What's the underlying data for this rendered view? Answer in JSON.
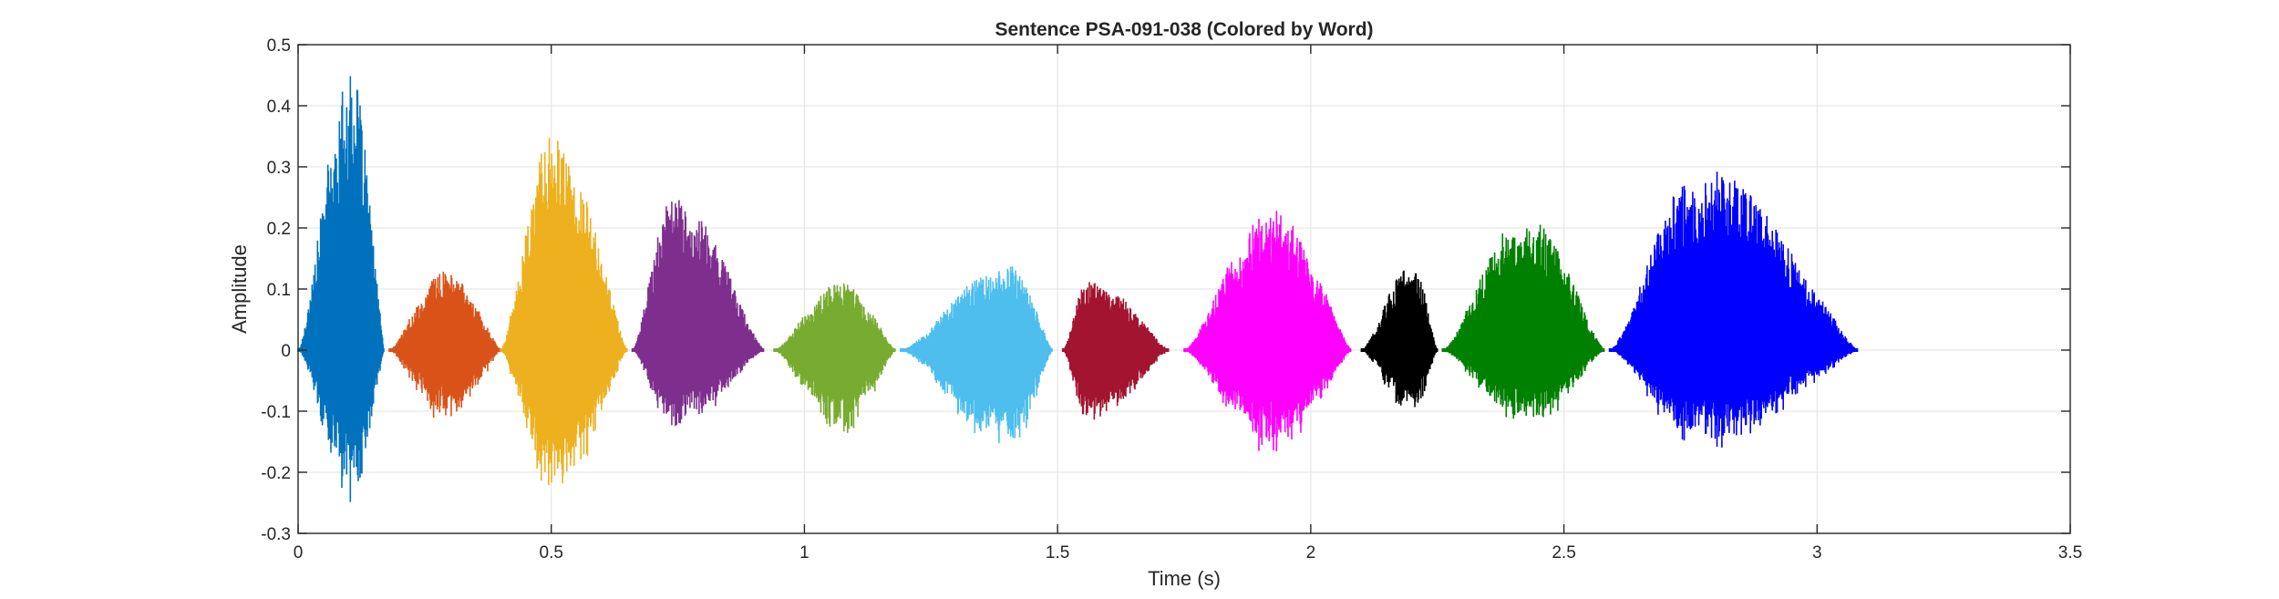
{
  "chart_data": {
    "type": "line",
    "title": "Sentence PSA-091-038 (Colored by Word)",
    "xlabel": "Time (s)",
    "ylabel": "Amplitude",
    "xlim": [
      0,
      3.5
    ],
    "ylim": [
      -0.3,
      0.5
    ],
    "xticks": [
      0,
      0.5,
      1,
      1.5,
      2,
      2.5,
      3,
      3.5
    ],
    "xtick_labels": [
      "0",
      "0.5",
      "1",
      "1.5",
      "2",
      "2.5",
      "3",
      "3.5"
    ],
    "yticks": [
      -0.3,
      -0.2,
      -0.1,
      0,
      0.1,
      0.2,
      0.3,
      0.4,
      0.5
    ],
    "ytick_labels": [
      "-0.3",
      "-0.2",
      "-0.1",
      "0",
      "0.1",
      "0.2",
      "0.3",
      "0.4",
      "0.5"
    ],
    "grid": true,
    "series": [
      {
        "color": "#0072BD",
        "start": 0.0,
        "end": 0.17,
        "peak_time": 0.105,
        "max": 0.45,
        "min": -0.26
      },
      {
        "color": "#D95319",
        "start": 0.18,
        "end": 0.4,
        "peak_time": 0.29,
        "max": 0.13,
        "min": -0.125
      },
      {
        "color": "#EDB120",
        "start": 0.4,
        "end": 0.65,
        "peak_time": 0.5,
        "max": 0.35,
        "min": -0.26
      },
      {
        "color": "#7E2F8E",
        "start": 0.66,
        "end": 0.92,
        "peak_time": 0.74,
        "max": 0.25,
        "min": -0.135
      },
      {
        "color": "#77AC30",
        "start": 0.94,
        "end": 1.18,
        "peak_time": 1.07,
        "max": 0.11,
        "min": -0.145
      },
      {
        "color": "#4DBEEE",
        "start": 1.19,
        "end": 1.49,
        "peak_time": 1.4,
        "max": 0.14,
        "min": -0.175
      },
      {
        "color": "#A2142F",
        "start": 1.51,
        "end": 1.72,
        "peak_time": 1.56,
        "max": 0.115,
        "min": -0.13
      },
      {
        "color": "#FF00FF",
        "start": 1.75,
        "end": 2.08,
        "peak_time": 1.92,
        "max": 0.23,
        "min": -0.18
      },
      {
        "color": "#000000",
        "start": 2.1,
        "end": 2.25,
        "peak_time": 2.2,
        "max": 0.14,
        "min": -0.11
      },
      {
        "color": "#008000",
        "start": 2.26,
        "end": 2.58,
        "peak_time": 2.42,
        "max": 0.22,
        "min": -0.135
      },
      {
        "color": "#0000FF",
        "start": 2.59,
        "end": 3.08,
        "peak_time": 2.77,
        "max": 0.3,
        "min": -0.17
      }
    ]
  }
}
